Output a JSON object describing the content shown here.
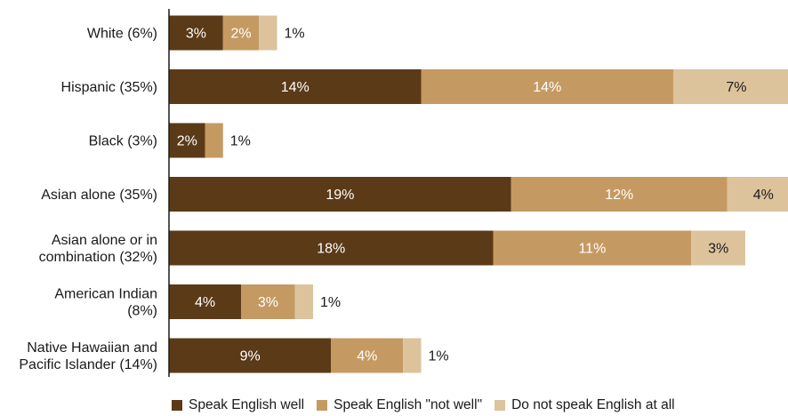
{
  "chart_data": {
    "type": "bar",
    "orientation": "horizontal",
    "stacked": true,
    "title": "",
    "xlabel": "",
    "ylabel": "",
    "categories": [
      "White (6%)",
      "Hispanic (35%)",
      "Black (3%)",
      "Asian alone (35%)",
      "Asian alone or in combination (32%)",
      "American Indian (8%)",
      "Native Hawaiian and Pacific Islander (14%)"
    ],
    "category_lines": [
      [
        "White (6%)"
      ],
      [
        "Hispanic (35%)"
      ],
      [
        "Black (3%)"
      ],
      [
        "Asian alone (35%)"
      ],
      [
        "Asian alone or in",
        "combination (32%)"
      ],
      [
        "American Indian",
        "(8%)"
      ],
      [
        "Native Hawaiian and",
        "Pacific Islander (14%)"
      ]
    ],
    "series": [
      {
        "name": "Speak English well",
        "color": "#5a3a17",
        "values": [
          3,
          14,
          2,
          19,
          18,
          4,
          9
        ],
        "labels": [
          "3%",
          "14%",
          "2%",
          "19%",
          "18%",
          "4%",
          "9%"
        ]
      },
      {
        "name": "Speak English \"not well\"",
        "color": "#c59a62",
        "values": [
          2,
          14,
          1,
          12,
          11,
          3,
          4
        ],
        "labels": [
          "2%",
          "14%",
          "1%",
          "12%",
          "11%",
          "3%",
          "4%"
        ]
      },
      {
        "name": "Do not speak English at all",
        "color": "#dcc39c",
        "values": [
          1,
          7,
          0,
          4,
          3,
          1,
          1
        ],
        "labels": [
          "1%",
          "7%",
          "",
          "4%",
          "3%",
          "1%",
          "1%"
        ]
      }
    ],
    "xlim": [
      0,
      35
    ],
    "grid": false,
    "legend_position": "bottom"
  }
}
